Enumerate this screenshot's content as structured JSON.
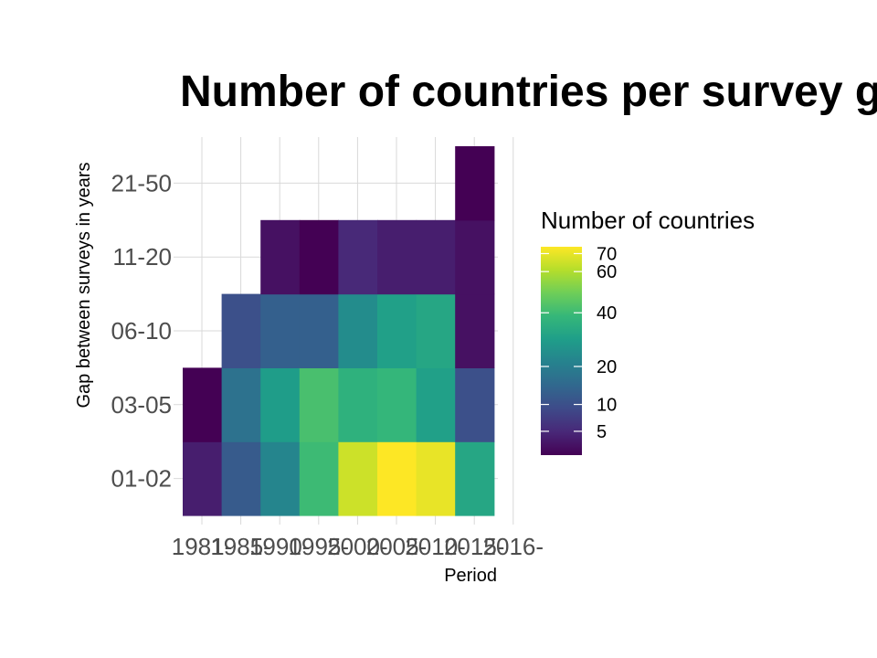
{
  "chart_data": {
    "type": "heatmap",
    "title": "Number of countries per survey g",
    "xlabel": "Period",
    "ylabel": "Gap between surveys in years",
    "x_categories": [
      "1981-",
      "1985-",
      "1990-",
      "1995-",
      "2000-",
      "2005-",
      "2010-",
      "2015-",
      "2016-"
    ],
    "y_categories": [
      "01-02",
      "03-05",
      "06-10",
      "11-20",
      "21-50"
    ],
    "cells": [
      {
        "x": "1981-",
        "y": "01-02",
        "value": 4
      },
      {
        "x": "1981-",
        "y": "03-05",
        "value": 2
      },
      {
        "x": "1985-",
        "y": "01-02",
        "value": 12
      },
      {
        "x": "1985-",
        "y": "03-05",
        "value": 17
      },
      {
        "x": "1985-",
        "y": "06-10",
        "value": 10
      },
      {
        "x": "1990-",
        "y": "01-02",
        "value": 22
      },
      {
        "x": "1990-",
        "y": "03-05",
        "value": 29
      },
      {
        "x": "1990-",
        "y": "06-10",
        "value": 13
      },
      {
        "x": "1990-",
        "y": "11-20",
        "value": 3
      },
      {
        "x": "1995-",
        "y": "01-02",
        "value": 40
      },
      {
        "x": "1995-",
        "y": "03-05",
        "value": 42
      },
      {
        "x": "1995-",
        "y": "06-10",
        "value": 13
      },
      {
        "x": "1995-",
        "y": "11-20",
        "value": 2
      },
      {
        "x": "2000-",
        "y": "01-02",
        "value": 65
      },
      {
        "x": "2000-",
        "y": "03-05",
        "value": 36
      },
      {
        "x": "2000-",
        "y": "06-10",
        "value": 24
      },
      {
        "x": "2000-",
        "y": "11-20",
        "value": 5
      },
      {
        "x": "2005-",
        "y": "01-02",
        "value": 74
      },
      {
        "x": "2005-",
        "y": "03-05",
        "value": 38
      },
      {
        "x": "2005-",
        "y": "06-10",
        "value": 30
      },
      {
        "x": "2005-",
        "y": "11-20",
        "value": 4
      },
      {
        "x": "2010-",
        "y": "01-02",
        "value": 70
      },
      {
        "x": "2010-",
        "y": "03-05",
        "value": 30
      },
      {
        "x": "2010-",
        "y": "06-10",
        "value": 32
      },
      {
        "x": "2010-",
        "y": "11-20",
        "value": 4
      },
      {
        "x": "2015-",
        "y": "01-02",
        "value": 32
      },
      {
        "x": "2015-",
        "y": "03-05",
        "value": 10
      },
      {
        "x": "2015-",
        "y": "06-10",
        "value": 3
      },
      {
        "x": "2015-",
        "y": "11-20",
        "value": 3
      },
      {
        "x": "2015-",
        "y": "21-50",
        "value": 2
      }
    ],
    "grid": true,
    "legend": {
      "title": "Number of countries",
      "position": "right",
      "ticks": [
        5,
        10,
        20,
        40,
        60,
        70
      ],
      "min": 2,
      "max": 74,
      "scale": "sqrt",
      "palette": [
        "#440154",
        "#482878",
        "#3e4a89",
        "#31688e",
        "#26828e",
        "#1f9e89",
        "#35b779",
        "#6ece58",
        "#b5de2b",
        "#fde725"
      ]
    }
  }
}
